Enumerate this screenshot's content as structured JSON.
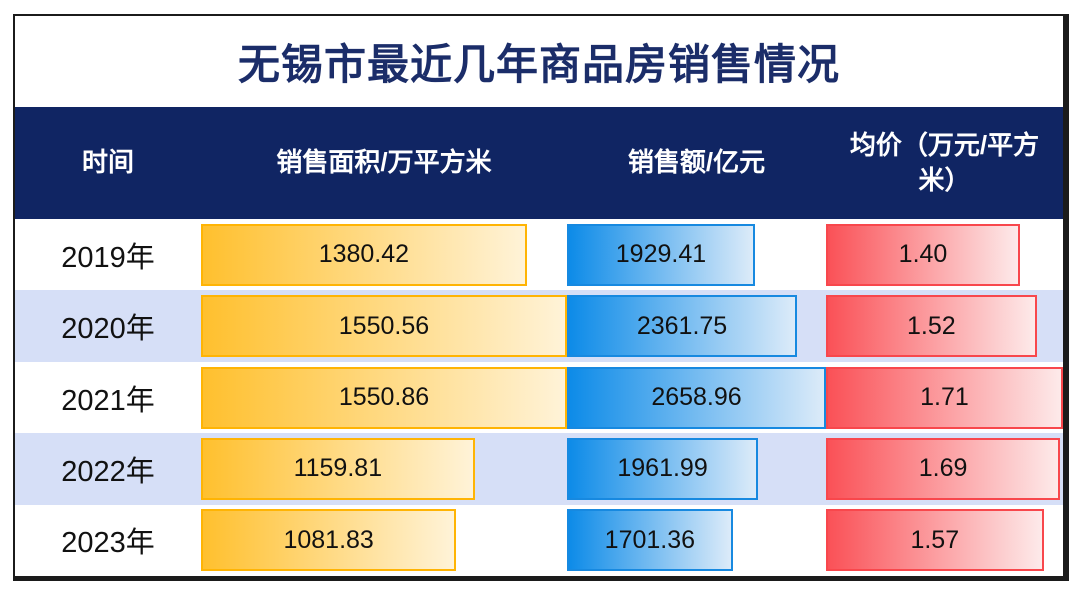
{
  "title": "无锡市最近几年商品房销售情况",
  "table": {
    "columns": [
      {
        "label": "时间"
      },
      {
        "label": "销售面积/万平方米"
      },
      {
        "label": "销售额/亿元"
      },
      {
        "label": "均价（万元/平方米）"
      }
    ],
    "rows": [
      {
        "year": "2019年",
        "area": "1380.42",
        "sales": "1929.41",
        "price": "1.40"
      },
      {
        "year": "2020年",
        "area": "1550.56",
        "sales": "2361.75",
        "price": "1.52"
      },
      {
        "year": "2021年",
        "area": "1550.86",
        "sales": "2658.96",
        "price": "1.71"
      },
      {
        "year": "2022年",
        "area": "1159.81",
        "sales": "1961.99",
        "price": "1.69"
      },
      {
        "year": "2023年",
        "area": "1081.83",
        "sales": "1701.36",
        "price": "1.57"
      }
    ]
  },
  "chart_data": {
    "type": "table",
    "title": "无锡市最近几年商品房销售情况",
    "categories": [
      "2019年",
      "2020年",
      "2021年",
      "2022年",
      "2023年"
    ],
    "series": [
      {
        "name": "销售面积/万平方米",
        "values": [
          1380.42,
          1550.56,
          1550.86,
          1159.81,
          1081.83
        ]
      },
      {
        "name": "销售额/亿元",
        "values": [
          1929.41,
          2361.75,
          2658.96,
          1961.99,
          1701.36
        ]
      },
      {
        "name": "均价（万元/平方米）",
        "values": [
          1.4,
          1.52,
          1.71,
          1.69,
          1.57
        ]
      }
    ],
    "layout_hints": {
      "data_bars": "each numeric cell rendered as horizontal gradient data bar scaled to column max",
      "striped_rows": true
    }
  },
  "colors": {
    "header_bg": "#102563",
    "title_text": "#1b2d69",
    "stripe_bg": "#d6dff7",
    "border": "#1b1b1b",
    "area_bar": "#ffc02e",
    "area_bar_end": "#fff3d8",
    "area_bar_border": "#ffb404",
    "sales_bar": "#0d8be8",
    "sales_bar_end": "#dcebf9",
    "sales_bar_border": "#1789e0",
    "price_bar": "#fa5157",
    "price_bar_end": "#fdeaea",
    "price_bar_border": "#f8474c"
  }
}
